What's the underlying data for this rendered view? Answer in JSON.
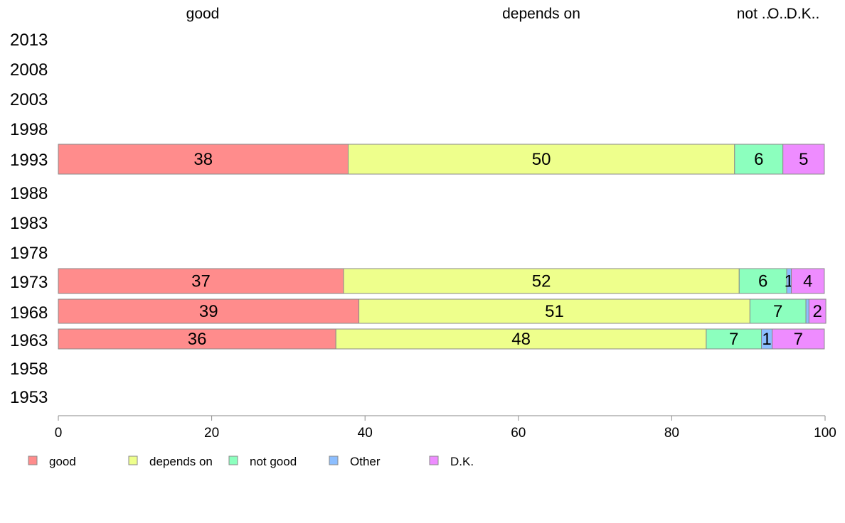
{
  "chart_data": {
    "type": "bar",
    "orientation": "horizontal",
    "stacked": true,
    "categories": [
      "2013",
      "2008",
      "2003",
      "1998",
      "1993",
      "1988",
      "1983",
      "1978",
      "1973",
      "1968",
      "1963",
      "1958",
      "1953"
    ],
    "series": [
      {
        "name": "good",
        "color": "#ff8c8c",
        "values": [
          null,
          null,
          null,
          null,
          37.8,
          null,
          null,
          null,
          37.2,
          39.2,
          36.2,
          null,
          null
        ]
      },
      {
        "name": "depends on",
        "color": "#eeff8c",
        "values": [
          null,
          null,
          null,
          null,
          50.4,
          null,
          null,
          null,
          51.6,
          51.0,
          48.3,
          null,
          null
        ]
      },
      {
        "name": "not good",
        "color": "#8cffbe",
        "values": [
          null,
          null,
          null,
          null,
          6.3,
          null,
          null,
          null,
          6.2,
          7.3,
          7.2,
          null,
          null
        ]
      },
      {
        "name": "Other",
        "color": "#8cbeff",
        "values": [
          null,
          null,
          null,
          null,
          0,
          null,
          null,
          null,
          0.6,
          0.4,
          1.4,
          null,
          null
        ]
      },
      {
        "name": "D.K.",
        "color": "#ee8cff",
        "values": [
          null,
          null,
          null,
          null,
          5.4,
          null,
          null,
          null,
          4.3,
          2.2,
          6.8,
          null,
          null
        ]
      }
    ],
    "data_labels": {
      "1993": [
        "38",
        "50",
        "6",
        "",
        "5"
      ],
      "1973": [
        "37",
        "52",
        "6",
        "1",
        "4"
      ],
      "1968": [
        "39",
        "51",
        "7",
        "",
        "2"
      ],
      "1963": [
        "36",
        "48",
        "7",
        "1",
        "7"
      ]
    },
    "top_labels": [
      "good",
      "depends on",
      "not ...",
      "O...",
      "D.K.."
    ],
    "x_ticks": [
      "0",
      "20",
      "40",
      "60",
      "80",
      "100"
    ],
    "xlim": [
      0,
      100
    ],
    "grid": false,
    "legend_position": "bottom-left",
    "title": "",
    "xlabel": "",
    "ylabel": ""
  }
}
